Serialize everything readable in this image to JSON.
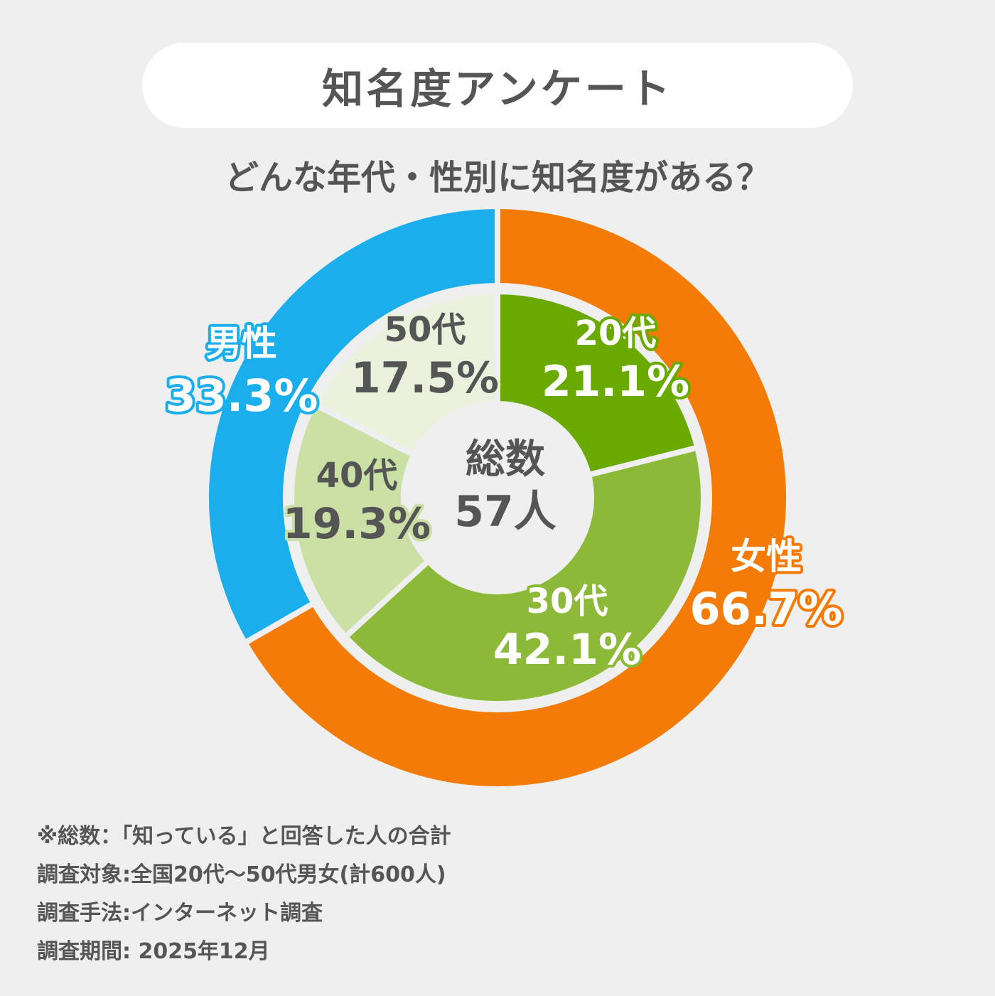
{
  "title": "知名度アンケート",
  "subtitle": "どんな年代・性別に知名度がある？",
  "chart_data": {
    "type": "pie",
    "center_label": {
      "line1": "総数",
      "line2": "57人"
    },
    "outer_ring": {
      "series_label": "性別",
      "slices": [
        {
          "label": "女性",
          "value": 66.7,
          "display": "66.7%",
          "color": "#f37b06",
          "text_color": "#ffffff",
          "outline_color": "#f37b06"
        },
        {
          "label": "男性",
          "value": 33.3,
          "display": "33.3%",
          "color": "#1aaeec",
          "text_color": "#ffffff",
          "outline_color": "#1aaeec"
        }
      ]
    },
    "inner_ring": {
      "series_label": "年代",
      "slices": [
        {
          "label": "20代",
          "value": 21.1,
          "display": "21.1%",
          "color": "#6aaa00",
          "text_color": "#ffffff",
          "outline_color": "#6aaa00"
        },
        {
          "label": "30代",
          "value": 42.1,
          "display": "42.1%",
          "color": "#8cba38",
          "text_color": "#ffffff",
          "outline_color": "#8cba38"
        },
        {
          "label": "40代",
          "value": 19.3,
          "display": "19.3%",
          "color": "#cbe0a4",
          "text_color": "#555555",
          "outline_color": "#cbe0a4"
        },
        {
          "label": "50代",
          "value": 17.5,
          "display": "17.5%",
          "color": "#eaf2dd",
          "text_color": "#555555",
          "outline_color": "#eaf2dd"
        }
      ]
    }
  },
  "notes": [
    "※総数：「知っている」と回答した人の合計",
    "調査対象:全国20代〜50代男女(計600人)",
    "調査手法:インターネット調査",
    "調査期間: 2025年12月"
  ]
}
